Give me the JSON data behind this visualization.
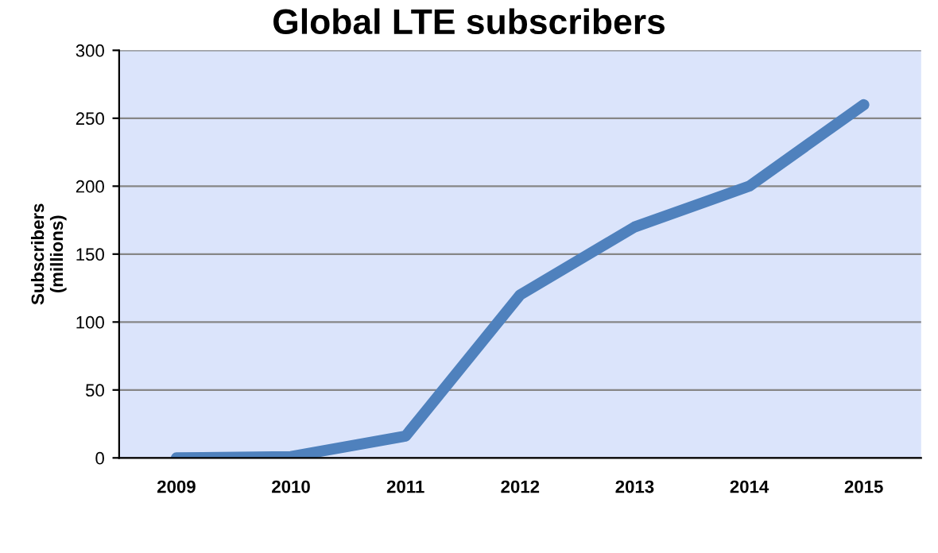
{
  "chart_data": {
    "type": "line",
    "title": "Global LTE subscribers",
    "ylabel": "Subscribers\n(millions)",
    "categories": [
      "2009",
      "2010",
      "2011",
      "2012",
      "2013",
      "2014",
      "2015"
    ],
    "series": [
      {
        "color": "#4f81bd",
        "values": [
          0,
          1,
          16,
          120,
          170,
          200,
          260
        ]
      }
    ],
    "ylim": [
      0,
      300
    ],
    "yticks": [
      0,
      50,
      100,
      150,
      200,
      250,
      300
    ],
    "grid": "y",
    "marker": "none",
    "line_style": "solid"
  }
}
